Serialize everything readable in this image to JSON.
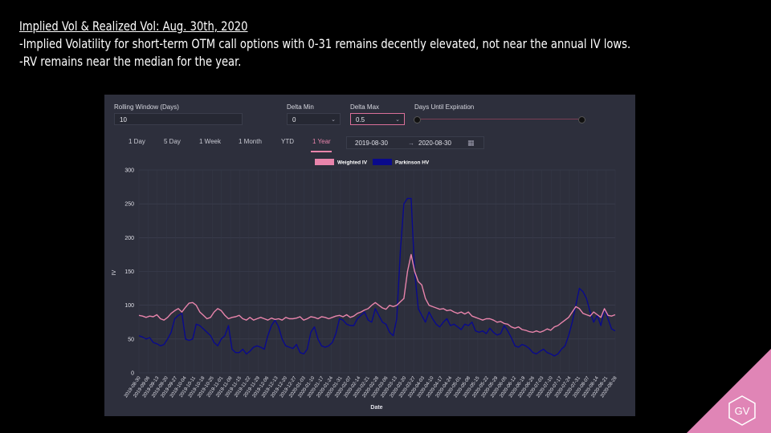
{
  "slide": {
    "title": "Implied Vol & Realized Vol: Aug. 30th, 2020",
    "line1": "-Implied Volatility for short-term OTM call options with 0-31 remains decently elevated, not near the annual IV lows.",
    "line2": "-RV remains near the median for the year."
  },
  "controls": {
    "rolling_window_label": "Rolling Window (Days)",
    "rolling_window_value": "10",
    "delta_min_label": "Delta Min",
    "delta_min_value": "0",
    "delta_max_label": "Delta Max",
    "delta_max_value": "0.5",
    "days_until_expiration_label": "Days Until Expiration"
  },
  "tabs": [
    "1 Day",
    "5 Day",
    "1 Week",
    "1 Month",
    "YTD",
    "1 Year"
  ],
  "active_tab": "1 Year",
  "date_range": {
    "start": "2019-08-30",
    "arrow": "→",
    "end": "2020-08-30"
  },
  "logo": {
    "text": "GV"
  },
  "colors": {
    "weighted_iv": "#e884ab",
    "parkinson_hv": "#0a0a8c",
    "accent": "#e085b6"
  },
  "chart_data": {
    "type": "line",
    "xlabel": "Date",
    "ylabel": "IV",
    "ylim": [
      0,
      300
    ],
    "yticks": [
      0,
      50,
      100,
      150,
      200,
      250,
      300
    ],
    "grid": true,
    "legend_position": "top-center",
    "x_tick_labels": [
      "2019-08-30",
      "2019-09-06",
      "2019-09-13",
      "2019-09-20",
      "2019-09-27",
      "2019-10-04",
      "2019-10-11",
      "2019-10-18",
      "2019-10-25",
      "2019-11-01",
      "2019-11-08",
      "2019-11-15",
      "2019-11-22",
      "2019-11-29",
      "2019-12-06",
      "2019-12-13",
      "2019-12-20",
      "2019-12-27",
      "2020-01-03",
      "2020-01-10",
      "2020-01-17",
      "2020-01-24",
      "2020-01-31",
      "2020-02-07",
      "2020-02-14",
      "2020-02-21",
      "2020-02-28",
      "2020-03-06",
      "2020-03-13",
      "2020-03-20",
      "2020-03-27",
      "2020-04-03",
      "2020-04-10",
      "2020-04-17",
      "2020-04-24",
      "2020-05-01",
      "2020-05-08",
      "2020-05-15",
      "2020-05-22",
      "2020-05-29",
      "2020-06-05",
      "2020-06-12",
      "2020-06-19",
      "2020-06-26",
      "2020-07-03",
      "2020-07-10",
      "2020-07-17",
      "2020-07-24",
      "2020-07-31",
      "2020-08-07",
      "2020-08-14",
      "2020-08-21",
      "2020-08-28"
    ],
    "series": [
      {
        "name": "Weighted IV",
        "values": [
          85,
          84,
          82,
          84,
          83,
          86,
          80,
          78,
          82,
          88,
          92,
          95,
          90,
          97,
          103,
          104,
          100,
          90,
          85,
          80,
          82,
          90,
          95,
          92,
          85,
          80,
          82,
          83,
          85,
          80,
          78,
          82,
          78,
          80,
          82,
          80,
          78,
          81,
          79,
          80,
          78,
          82,
          80,
          80,
          81,
          83,
          78,
          80,
          83,
          82,
          80,
          83,
          82,
          80,
          82,
          84,
          85,
          83,
          86,
          82,
          84,
          88,
          90,
          93,
          95,
          100,
          104,
          100,
          96,
          94,
          100,
          98,
          100,
          105,
          110,
          150,
          175,
          150,
          135,
          130,
          110,
          100,
          98,
          96,
          94,
          95,
          92,
          93,
          90,
          88,
          90,
          87,
          90,
          84,
          82,
          80,
          78,
          80,
          80,
          78,
          75,
          76,
          73,
          72,
          68,
          66,
          68,
          64,
          63,
          61,
          60,
          62,
          60,
          62,
          65,
          63,
          68,
          70,
          74,
          78,
          82,
          90,
          98,
          95,
          88,
          86,
          84,
          90,
          86,
          82,
          95,
          85,
          84,
          86
        ]
      },
      {
        "name": "Parkinson HV",
        "values": [
          55,
          53,
          50,
          52,
          45,
          43,
          40,
          42,
          50,
          60,
          80,
          85,
          88,
          50,
          48,
          50,
          72,
          70,
          65,
          60,
          55,
          45,
          40,
          50,
          55,
          70,
          35,
          30,
          30,
          35,
          28,
          32,
          38,
          40,
          38,
          35,
          55,
          70,
          78,
          68,
          50,
          40,
          38,
          36,
          42,
          30,
          28,
          35,
          60,
          68,
          50,
          40,
          38,
          40,
          45,
          58,
          80,
          78,
          72,
          70,
          70,
          80,
          85,
          90,
          78,
          75,
          95,
          85,
          75,
          72,
          60,
          55,
          80,
          180,
          250,
          258,
          258,
          150,
          95,
          85,
          75,
          90,
          80,
          72,
          68,
          75,
          80,
          70,
          72,
          68,
          64,
          72,
          70,
          75,
          62,
          60,
          62,
          58,
          66,
          60,
          56,
          58,
          70,
          62,
          52,
          40,
          38,
          42,
          40,
          36,
          30,
          28,
          32,
          35,
          30,
          28,
          25,
          28,
          35,
          40,
          55,
          75,
          100,
          125,
          120,
          110,
          90,
          75,
          85,
          70,
          95,
          80,
          65,
          62
        ]
      }
    ]
  }
}
